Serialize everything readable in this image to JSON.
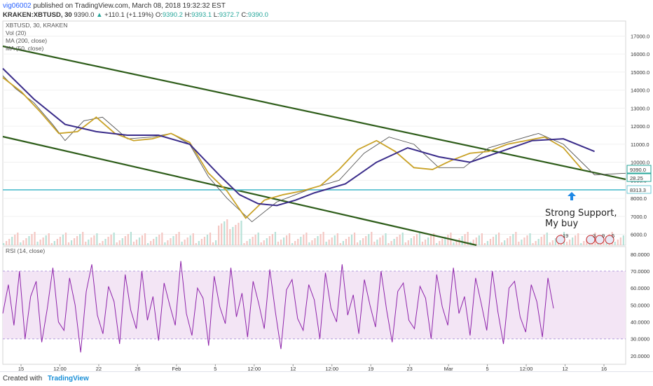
{
  "header": {
    "author": "vig06002",
    "published_text": "published on TradingView.com, March 08, 2018 19:32:32 EST",
    "symbol": "KRAKEN:XBTUSD, 30",
    "last": "9390.0",
    "change": "+110.1 (+1.19%)",
    "open_label": "O:",
    "open": "9390.2",
    "high_label": "H:",
    "high": "9393.1",
    "low_label": "L:",
    "low": "9372.7",
    "close_label": "C:",
    "close": "9390.0"
  },
  "legend": {
    "symbol": "XBTUSD, 30, KRAKEN",
    "vol": "Vol (20)",
    "ma200": "MA (200, close)",
    "ma50": "MA (50, close)",
    "rsi": "RSI (14, close)"
  },
  "colors": {
    "price_line": "#555555",
    "ma_fast": "#c9a227",
    "ma_slow": "#3a2c8a",
    "trendline": "#2e5d1a",
    "support": "#6fc9d6",
    "rsi_line": "#8e24aa",
    "rsi_band": "#f3e5f5"
  },
  "chart_data": [
    {
      "type": "line",
      "title": "XBTUSD, 30, KRAKEN",
      "y_ticks": [
        6000.0,
        7000.0,
        8000.0,
        9000.0,
        10000.0,
        11000.0,
        12000.0,
        13000.0,
        14000.0,
        15000.0,
        16000.0,
        17000.0
      ],
      "ylim": [
        5400,
        17600
      ],
      "x_ticks": [
        "15",
        "12:00",
        "22",
        "26",
        "Feb",
        "5",
        "12:00",
        "12",
        "12:00",
        "19",
        "23",
        "Mar",
        "5",
        "12:00",
        "12",
        "16"
      ],
      "price_labels": [
        "9390.0",
        "28.25",
        "8313.3"
      ],
      "series": [
        {
          "name": "XBTUSD",
          "x": [
            0,
            2,
            5,
            8,
            10,
            13,
            16,
            20,
            24,
            27,
            30,
            33,
            36,
            40,
            44,
            47,
            50,
            54,
            58,
            62,
            66,
            70,
            74,
            78,
            82,
            86,
            90,
            95,
            100
          ],
          "values": [
            14800,
            14100,
            13300,
            12100,
            11200,
            12300,
            12500,
            11300,
            11400,
            11600,
            11000,
            9200,
            8000,
            6700,
            7800,
            8200,
            8600,
            9000,
            10500,
            11400,
            11000,
            9700,
            9700,
            10800,
            11200,
            11600,
            11000,
            9300,
            9390
          ]
        },
        {
          "name": "MA (50, close)",
          "x": [
            0,
            3,
            6,
            9,
            12,
            15,
            18,
            21,
            24,
            27,
            30,
            33,
            36,
            39,
            42,
            45,
            48,
            51,
            54,
            57,
            60,
            63,
            66,
            69,
            72,
            75,
            78,
            81,
            84,
            87,
            90,
            93
          ],
          "values": [
            14700,
            13900,
            12800,
            11600,
            11700,
            12500,
            11600,
            11200,
            11300,
            11600,
            11100,
            9400,
            8400,
            6900,
            7900,
            8200,
            8400,
            8700,
            9600,
            10700,
            11200,
            10600,
            9700,
            9600,
            10100,
            10500,
            10600,
            11000,
            11200,
            11400,
            10800,
            9600
          ]
        },
        {
          "name": "MA (200, close)",
          "x": [
            0,
            5,
            10,
            15,
            20,
            25,
            30,
            35,
            38,
            41,
            44,
            47,
            50,
            55,
            60,
            65,
            70,
            75,
            80,
            85,
            90,
            95
          ],
          "values": [
            15200,
            13500,
            12100,
            11700,
            11500,
            11500,
            11000,
            9200,
            8200,
            7700,
            7600,
            7900,
            8300,
            8800,
            10000,
            10800,
            10300,
            10000,
            10600,
            11200,
            11300,
            10600
          ]
        }
      ],
      "annotations": [
        {
          "text": "Strong Support,",
          "line2": "My buy"
        },
        {
          "text": "19"
        },
        {
          "text": "3"
        },
        {
          "text": "9"
        },
        {
          "text": "5"
        }
      ]
    },
    {
      "type": "line",
      "title": "RSI (14, close)",
      "y_ticks": [
        20.0,
        30.0,
        40.0,
        50.0,
        60.0,
        70.0,
        80.0
      ],
      "ylim": [
        15,
        82
      ],
      "series": [
        {
          "name": "RSI (14, close)",
          "values": [
            45,
            62,
            38,
            70,
            30,
            55,
            64,
            28,
            48,
            72,
            40,
            35,
            66,
            50,
            22,
            58,
            74,
            44,
            33,
            61,
            52,
            27,
            68,
            47,
            36,
            70,
            41,
            55,
            29,
            63,
            50,
            38,
            76,
            45,
            32,
            60,
            54,
            26,
            67,
            49,
            39,
            72,
            43,
            57,
            31,
            64,
            51,
            36,
            71,
            46,
            24,
            59,
            65,
            42,
            35,
            62,
            53,
            30,
            69,
            48,
            40,
            74,
            44,
            56,
            33,
            65,
            50,
            37,
            70,
            47,
            28,
            58,
            63,
            41,
            36,
            61,
            54,
            30,
            68,
            49,
            38,
            72,
            45,
            55,
            32,
            66,
            51,
            35,
            70,
            46,
            27,
            60,
            64,
            43,
            34,
            62,
            52,
            31,
            66,
            48
          ]
        }
      ]
    }
  ]
}
